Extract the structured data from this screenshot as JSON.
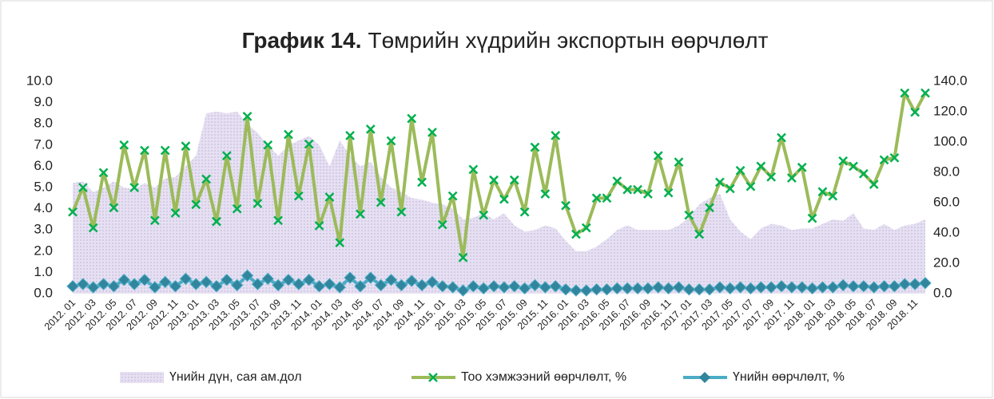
{
  "chart_data": {
    "type": "combo",
    "title_prefix": "График 14.",
    "title": "Төмрийн хүдрийн экспортын өөрчлөлт",
    "categories": [
      "2012. 01",
      null,
      "2012. 03",
      null,
      "2012. 05",
      null,
      "2012. 07",
      null,
      "2012. 09",
      null,
      "2012. 11",
      null,
      "2013. 01",
      null,
      "2013. 03",
      null,
      "2013. 05",
      null,
      "2013. 07",
      null,
      "2013. 09",
      null,
      "2013. 11",
      null,
      "2014. 01",
      null,
      "2014. 03",
      null,
      "2014. 05",
      null,
      "2014. 07",
      null,
      "2014. 09",
      null,
      "2014. 11",
      null,
      "2015. 01",
      null,
      "2015. 03",
      null,
      "2015. 05",
      null,
      "2015. 07",
      null,
      "2015. 09",
      null,
      "2015. 11",
      null,
      "2016. 01",
      null,
      "2016. 03",
      null,
      "2016. 05",
      null,
      "2016. 07",
      null,
      "2016. 09",
      null,
      "2016. 11",
      null,
      "2017. 01",
      null,
      "2017. 03",
      null,
      "2017. 05",
      null,
      "2017. 07",
      null,
      "2017. 09",
      null,
      "2017. 11",
      null,
      "2018. 01",
      null,
      "2018. 03",
      null,
      "2018. 05",
      null,
      "2018. 07",
      null,
      "2018. 09",
      null,
      "2018. 11",
      null
    ],
    "series": [
      {
        "name": "Үнийн дүн, сая ам.дол",
        "type": "area",
        "axis": "y2",
        "color": "#e2dcef",
        "values": [
          73,
          74,
          67,
          70,
          74,
          70,
          69,
          73,
          70,
          76,
          77,
          84,
          91,
          119,
          120,
          119,
          120,
          112,
          106,
          98,
          91,
          98,
          101,
          104,
          98,
          84,
          101,
          91,
          84,
          87,
          77,
          70,
          67,
          63,
          62,
          60,
          59,
          56,
          49,
          50,
          53,
          49,
          53,
          45,
          41,
          42,
          45,
          43,
          35,
          28,
          28,
          31,
          36,
          42,
          45,
          42,
          42,
          42,
          42,
          45,
          50,
          59,
          63,
          66,
          49,
          41,
          36,
          43,
          46,
          45,
          42,
          43,
          43,
          46,
          49,
          48,
          53,
          43,
          42,
          46,
          42,
          45,
          46,
          49
        ]
      },
      {
        "name": "Тоо хэмжээний өөрчлөлт, %",
        "type": "line",
        "marker": "x",
        "color": "#9bbb59",
        "marker_color": "#00b050",
        "values": [
          3.85,
          5.0,
          3.1,
          5.7,
          4.05,
          7.0,
          5.0,
          6.75,
          3.45,
          6.75,
          3.8,
          6.95,
          4.2,
          5.4,
          3.4,
          6.5,
          4.0,
          8.35,
          4.25,
          7.0,
          3.45,
          7.5,
          4.6,
          7.05,
          3.2,
          4.55,
          2.4,
          7.45,
          3.75,
          7.75,
          4.3,
          7.2,
          3.85,
          8.25,
          5.25,
          7.6,
          3.25,
          4.6,
          1.7,
          5.85,
          3.7,
          5.35,
          4.45,
          5.35,
          3.85,
          6.9,
          4.7,
          7.45,
          4.15,
          2.8,
          3.1,
          4.5,
          4.5,
          5.3,
          4.9,
          4.9,
          4.7,
          6.5,
          4.75,
          6.2,
          3.7,
          2.8,
          4.05,
          5.25,
          4.95,
          5.8,
          5.05,
          6.0,
          5.5,
          7.35,
          5.45,
          5.95,
          3.55,
          4.8,
          4.6,
          6.25,
          6.0,
          5.65,
          5.15,
          6.3,
          6.4,
          9.45,
          8.55,
          9.45
        ]
      },
      {
        "name": "Үнийн өөрчлөлт, %",
        "type": "line",
        "marker": "diamond",
        "color": "#4bacc6",
        "marker_color": "#31859c",
        "values": [
          0.35,
          0.45,
          0.3,
          0.45,
          0.35,
          0.65,
          0.45,
          0.65,
          0.3,
          0.55,
          0.35,
          0.7,
          0.45,
          0.55,
          0.35,
          0.65,
          0.4,
          0.85,
          0.45,
          0.7,
          0.4,
          0.65,
          0.45,
          0.65,
          0.35,
          0.45,
          0.3,
          0.75,
          0.35,
          0.75,
          0.4,
          0.65,
          0.4,
          0.6,
          0.4,
          0.55,
          0.35,
          0.3,
          0.15,
          0.35,
          0.25,
          0.35,
          0.3,
          0.35,
          0.25,
          0.4,
          0.3,
          0.35,
          0.2,
          0.15,
          0.15,
          0.2,
          0.2,
          0.25,
          0.25,
          0.25,
          0.25,
          0.3,
          0.25,
          0.3,
          0.2,
          0.2,
          0.2,
          0.3,
          0.25,
          0.3,
          0.25,
          0.3,
          0.3,
          0.35,
          0.3,
          0.3,
          0.25,
          0.3,
          0.3,
          0.4,
          0.35,
          0.35,
          0.3,
          0.35,
          0.35,
          0.45,
          0.45,
          0.5
        ]
      }
    ],
    "ylim": [
      0,
      10
    ],
    "yticks": [
      {
        "value": 0,
        "label": "0.0"
      },
      {
        "value": 1,
        "label": "1.0"
      },
      {
        "value": 2,
        "label": "2.0"
      },
      {
        "value": 3,
        "label": "3.0"
      },
      {
        "value": 4,
        "label": "4.0"
      },
      {
        "value": 5,
        "label": "5.0"
      },
      {
        "value": 6,
        "label": "6.0"
      },
      {
        "value": 7,
        "label": "7.0"
      },
      {
        "value": 8,
        "label": "8.0"
      },
      {
        "value": 9,
        "label": "9.0"
      },
      {
        "value": 10,
        "label": "10.0"
      }
    ],
    "y2lim": [
      0,
      140
    ],
    "y2ticks": [
      {
        "value": 0,
        "label": "0.0"
      },
      {
        "value": 20,
        "label": "20.0"
      },
      {
        "value": 40,
        "label": "40.0"
      },
      {
        "value": 60,
        "label": "60.0"
      },
      {
        "value": 80,
        "label": "80.0"
      },
      {
        "value": 100,
        "label": "100.0"
      },
      {
        "value": 120,
        "label": "120.0"
      },
      {
        "value": 140,
        "label": "140.0"
      }
    ],
    "legend": "bottom"
  }
}
